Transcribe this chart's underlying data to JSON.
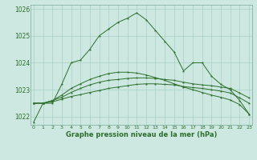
{
  "title": "Graphe pression niveau de la mer (hPa)",
  "hours": [
    0,
    1,
    2,
    3,
    4,
    5,
    6,
    7,
    8,
    9,
    10,
    11,
    12,
    13,
    14,
    15,
    16,
    17,
    18,
    19,
    20,
    21,
    22,
    23
  ],
  "line1": [
    1021.8,
    1022.5,
    1022.5,
    1023.2,
    1024.0,
    1024.1,
    1024.5,
    1025.0,
    1025.25,
    1025.5,
    1025.65,
    1025.85,
    1025.6,
    1025.2,
    1024.8,
    1024.4,
    1023.7,
    1024.0,
    1024.0,
    1023.5,
    1023.2,
    1023.0,
    1022.6,
    1022.1
  ],
  "line2": [
    1022.5,
    1022.5,
    1022.55,
    1022.65,
    1022.75,
    1022.82,
    1022.9,
    1022.97,
    1023.05,
    1023.1,
    1023.15,
    1023.2,
    1023.22,
    1023.22,
    1023.2,
    1023.18,
    1023.12,
    1023.08,
    1023.05,
    1023.0,
    1022.95,
    1022.88,
    1022.7,
    1022.5
  ],
  "line3": [
    1022.5,
    1022.5,
    1022.6,
    1022.72,
    1022.9,
    1023.05,
    1023.18,
    1023.28,
    1023.35,
    1023.38,
    1023.42,
    1023.44,
    1023.44,
    1023.42,
    1023.38,
    1023.35,
    1023.28,
    1023.22,
    1023.18,
    1023.15,
    1023.1,
    1023.05,
    1022.88,
    1022.7
  ],
  "line4": [
    1022.5,
    1022.5,
    1022.6,
    1022.8,
    1023.05,
    1023.22,
    1023.38,
    1023.5,
    1023.6,
    1023.65,
    1023.65,
    1023.62,
    1023.55,
    1023.45,
    1023.35,
    1023.22,
    1023.1,
    1023.0,
    1022.9,
    1022.8,
    1022.72,
    1022.62,
    1022.45,
    1022.1
  ],
  "line_color": "#2d6e2d",
  "bg_color": "#cde8e0",
  "grid_color": "#a8cfc5",
  "ylim": [
    1021.7,
    1026.15
  ],
  "yticks": [
    1022,
    1023,
    1024,
    1025,
    1026
  ],
  "xticks": [
    0,
    1,
    2,
    3,
    4,
    5,
    6,
    7,
    8,
    9,
    10,
    11,
    12,
    13,
    14,
    15,
    16,
    17,
    18,
    19,
    20,
    21,
    22,
    23
  ]
}
